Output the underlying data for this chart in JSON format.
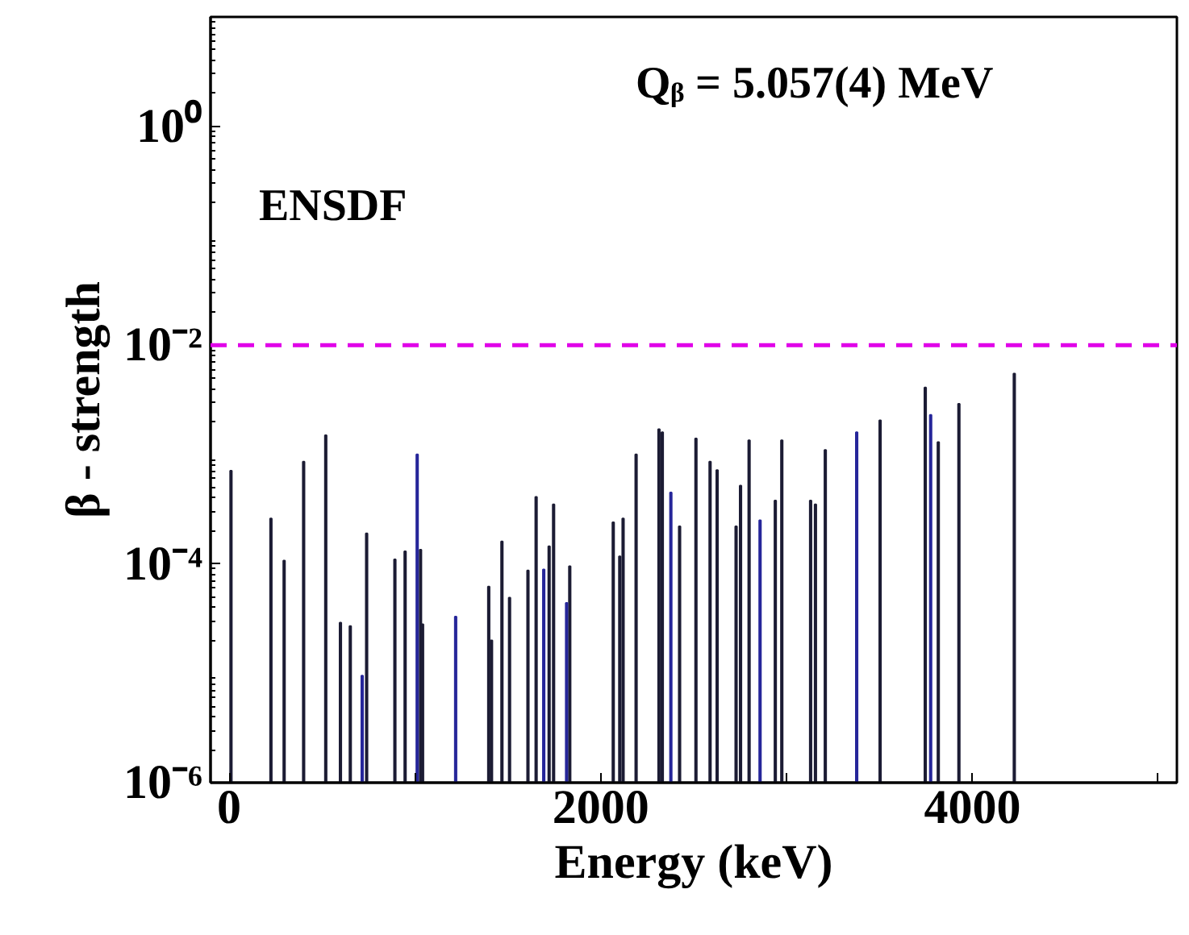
{
  "chart_data": {
    "type": "bar",
    "xlabel": "Energy (keV)",
    "ylabel": "β - strength",
    "annotations": [
      "Qᵦ = 5.057(4) MeV",
      "ENSDF"
    ],
    "log": "y",
    "grid": false,
    "xlim": [
      -100,
      5100
    ],
    "xticks": [
      0,
      {
        "value": 1000,
        "label": null
      },
      2000,
      {
        "value": 3000,
        "label": null
      },
      4000,
      {
        "value": 5000,
        "label": null
      }
    ],
    "ylim": [
      1e-06,
      10
    ],
    "yticks": [
      {
        "value": 1e-06,
        "label": "10⁻⁶"
      },
      {
        "value": 0.0001,
        "label": "10⁻⁴"
      },
      {
        "value": 0.01,
        "label": "10⁻²"
      },
      {
        "value": 1,
        "label": "10⁰"
      }
    ],
    "ref_lines": [
      {
        "axis": "y",
        "value": 0.01,
        "color": "#e000e8",
        "line_style": "dashed"
      }
    ],
    "series": [
      {
        "color": "#1c1c34",
        "x": [
          10,
          225,
          296,
          401,
          520,
          599,
          652,
          740,
          892,
          947,
          1030,
          1041,
          1397,
          1412,
          1468,
          1509,
          1608,
          1652,
          1722,
          1746,
          1833,
          2067,
          2102,
          2120,
          2190,
          2313,
          2331,
          2424,
          2512,
          2588,
          2626,
          2728,
          2752,
          2798,
          2939,
          2974,
          3129,
          3155,
          3208,
          3503,
          3746,
          3816,
          3927,
          4225
        ],
        "values": [
          0.00071,
          0.00026,
          0.000107,
          0.00086,
          0.0015,
          2.9e-05,
          2.7e-05,
          0.00019,
          0.00011,
          0.00013,
          0.000135,
          2.8e-05,
          6.2e-05,
          2e-05,
          0.00016,
          4.9e-05,
          8.7e-05,
          0.00041,
          0.000145,
          0.00035,
          9.5e-05,
          0.00024,
          0.000117,
          0.00026,
          0.001,
          0.0017,
          0.0016,
          0.00022,
          0.0014,
          0.00086,
          0.00072,
          0.00022,
          0.00052,
          0.00135,
          0.00038,
          0.00135,
          0.00038,
          0.00035,
          0.0011,
          0.00205,
          0.0041,
          0.0013,
          0.0029,
          0.0055
        ]
      },
      {
        "color": "#26269a",
        "x": [
          716,
          1012,
          1219,
          1693,
          1816,
          2377,
          2857,
          3377,
          3775
        ],
        "values": [
          9.5e-06,
          0.001,
          3.3e-05,
          8.9e-05,
          4.4e-05,
          0.00045,
          0.00025,
          0.0016,
          0.0023
        ]
      }
    ]
  }
}
